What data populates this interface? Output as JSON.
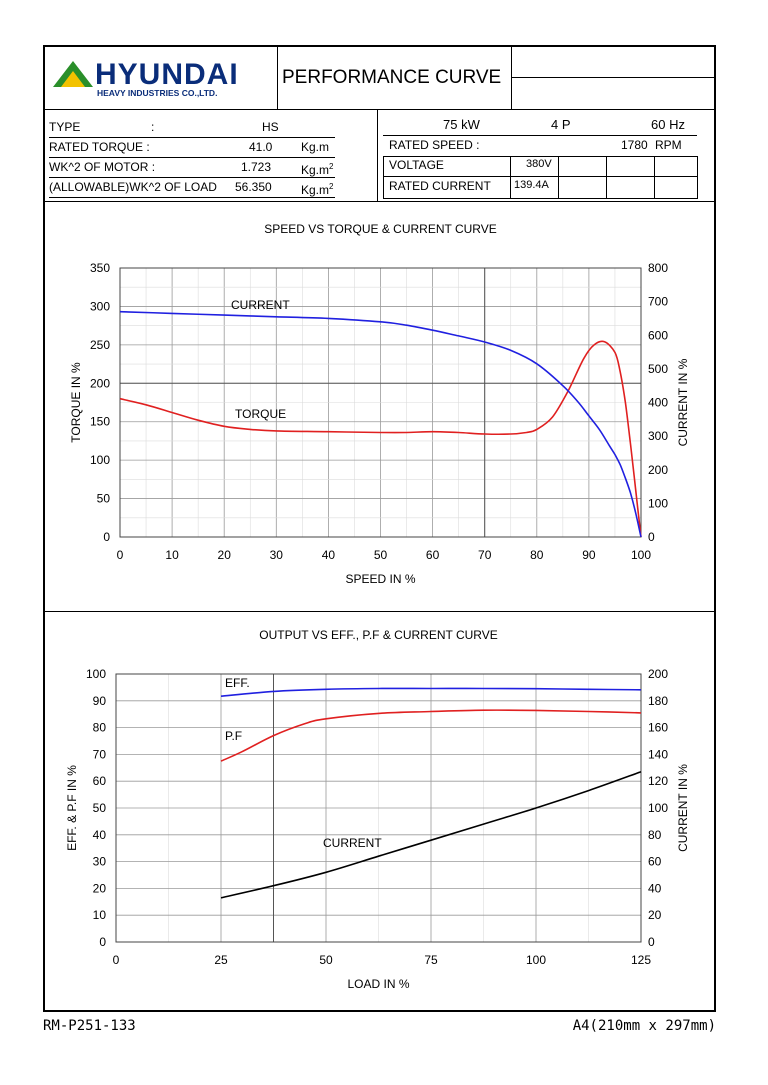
{
  "header": {
    "brand": "HYUNDAI",
    "brand_sub": "HEAVY INDUSTRIES CO.,LTD.",
    "title": "PERFORMANCE CURVE"
  },
  "specs": {
    "type_label": "TYPE",
    "type_colon": ":",
    "type_value": "HS",
    "rated_torque_label": "RATED TORQUE :",
    "rated_torque_value": "41.0",
    "rated_torque_unit": "Kg.m",
    "wk2_motor_label": "WK^2 OF MOTOR :",
    "wk2_motor_value": "1.723",
    "wk2_unit": "Kg.m",
    "wk2_unit_sup": "2",
    "wk2_load_label": "(ALLOWABLE)WK^2 OF LOAD",
    "wk2_load_value": "56.350",
    "power_value": "75",
    "power_unit": "kW",
    "poles_value": "4",
    "poles_unit": "P",
    "freq_value": "60",
    "freq_unit": "Hz",
    "rated_speed_label": "RATED SPEED :",
    "rated_speed_value": "1780",
    "rated_speed_unit": "RPM",
    "voltage_label": "VOLTAGE",
    "voltage_value": "380V",
    "rated_current_label": "RATED CURRENT",
    "rated_current_value": "139.4A"
  },
  "chart_data": [
    {
      "type": "line",
      "title": "SPEED VS TORQUE & CURRENT CURVE",
      "xlabel": "SPEED IN %",
      "ylabel": "TORQUE IN %",
      "y2label": "CURRENT IN %",
      "xlim": [
        0,
        100
      ],
      "ylim": [
        0,
        350
      ],
      "y2lim": [
        0,
        800
      ],
      "xticks": [
        "0",
        "10",
        "20",
        "30",
        "40",
        "50",
        "60",
        "70",
        "80",
        "90",
        "100"
      ],
      "yticks": [
        "0",
        "50",
        "100",
        "150",
        "200",
        "250",
        "300",
        "350"
      ],
      "y2ticks": [
        "0",
        "100",
        "200",
        "300",
        "400",
        "500",
        "600",
        "700",
        "800"
      ],
      "grid": true,
      "series": [
        {
          "name": "TORQUE",
          "axis": "left",
          "color": "#e02020",
          "x": [
            0,
            5,
            10,
            15,
            20,
            25,
            30,
            40,
            50,
            55,
            60,
            65,
            70,
            75,
            78,
            80,
            83,
            86,
            89,
            91,
            93,
            95,
            96,
            97,
            98,
            99,
            100
          ],
          "y": [
            180,
            172,
            162,
            152,
            144,
            140,
            138,
            137,
            136,
            136,
            137,
            136,
            134,
            134,
            136,
            140,
            156,
            190,
            232,
            250,
            254,
            240,
            215,
            175,
            120,
            60,
            0
          ]
        },
        {
          "name": "CURRENT",
          "axis": "right",
          "color": "#2020e0",
          "x": [
            0,
            10,
            20,
            30,
            40,
            50,
            55,
            60,
            65,
            70,
            75,
            80,
            85,
            88,
            90,
            92,
            94,
            95,
            96,
            97,
            98,
            99,
            100
          ],
          "y": [
            670,
            665,
            660,
            655,
            650,
            640,
            630,
            615,
            598,
            580,
            555,
            515,
            450,
            400,
            360,
            320,
            270,
            245,
            215,
            175,
            130,
            70,
            0
          ]
        }
      ],
      "annotations": [
        "CURRENT",
        "TORQUE"
      ]
    },
    {
      "type": "line",
      "title": "OUTPUT VS EFF., P.F & CURRENT CURVE",
      "xlabel": "LOAD IN %",
      "ylabel": "EFF. & P.F IN %",
      "y2label": "CURRENT IN %",
      "xlim": [
        0,
        125
      ],
      "ylim": [
        0,
        100
      ],
      "y2lim": [
        0,
        200
      ],
      "xticks": [
        "0",
        "25",
        "50",
        "75",
        "100",
        "125"
      ],
      "yticks": [
        "0",
        "10",
        "20",
        "30",
        "40",
        "50",
        "60",
        "70",
        "80",
        "90",
        "100"
      ],
      "y2ticks": [
        "0",
        "20",
        "40",
        "60",
        "80",
        "100",
        "120",
        "140",
        "160",
        "180",
        "200"
      ],
      "grid": true,
      "series": [
        {
          "name": "EFF.",
          "axis": "left",
          "color": "#2020e0",
          "x": [
            25,
            37.5,
            50,
            62.5,
            75,
            87.5,
            100,
            112.5,
            125
          ],
          "y": [
            91.7,
            93.5,
            94.3,
            94.6,
            94.6,
            94.6,
            94.5,
            94.3,
            94.1
          ]
        },
        {
          "name": "P.F",
          "axis": "left",
          "color": "#e02020",
          "x": [
            25,
            30,
            37.5,
            45,
            50,
            62.5,
            75,
            87.5,
            100,
            112.5,
            125
          ],
          "y": [
            67.5,
            71,
            77,
            81.5,
            83.3,
            85.3,
            86,
            86.5,
            86.4,
            86,
            85.5
          ]
        },
        {
          "name": "CURRENT",
          "axis": "right",
          "color": "#000000",
          "x": [
            25,
            37.5,
            50,
            62.5,
            75,
            87.5,
            100,
            112.5,
            125
          ],
          "y": [
            33,
            42,
            52,
            64,
            76,
            88,
            100,
            113,
            127
          ]
        }
      ],
      "annotations": [
        "EFF.",
        "P.F",
        "CURRENT"
      ]
    }
  ],
  "footer": {
    "left": "RM-P251-133",
    "right": "A4(210mm x 297mm)"
  }
}
